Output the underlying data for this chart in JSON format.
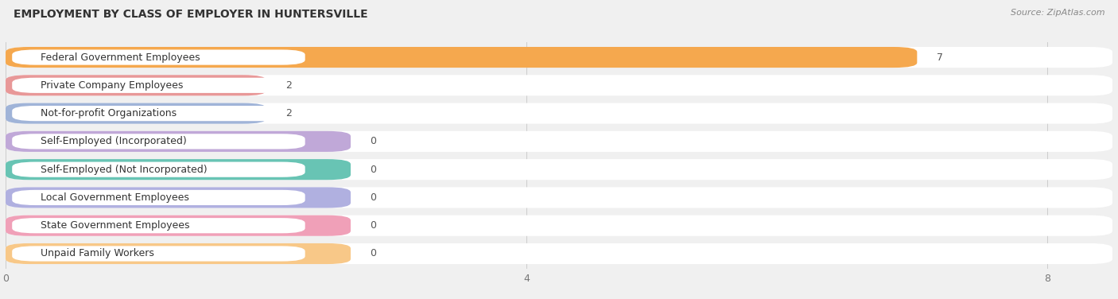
{
  "title": "EMPLOYMENT BY CLASS OF EMPLOYER IN HUNTERSVILLE",
  "source": "Source: ZipAtlas.com",
  "categories": [
    "Federal Government Employees",
    "Private Company Employees",
    "Not-for-profit Organizations",
    "Self-Employed (Incorporated)",
    "Self-Employed (Not Incorporated)",
    "Local Government Employees",
    "State Government Employees",
    "Unpaid Family Workers"
  ],
  "values": [
    7,
    2,
    2,
    0,
    0,
    0,
    0,
    0
  ],
  "bar_colors": [
    "#f5a84e",
    "#e89898",
    "#a0b4d8",
    "#c0a8d8",
    "#68c4b4",
    "#b0b0e0",
    "#f0a0b8",
    "#f8c888"
  ],
  "label_bg_colors": [
    "#ffffff",
    "#ffffff",
    "#ffffff",
    "#ffffff",
    "#ffffff",
    "#ffffff",
    "#ffffff",
    "#ffffff"
  ],
  "row_bg_color": "#ffffff",
  "page_bg_color": "#f0f0f0",
  "xlim": [
    0,
    8.5
  ],
  "xticks": [
    0,
    4,
    8
  ],
  "title_fontsize": 10,
  "label_fontsize": 9,
  "value_fontsize": 9,
  "source_fontsize": 8
}
